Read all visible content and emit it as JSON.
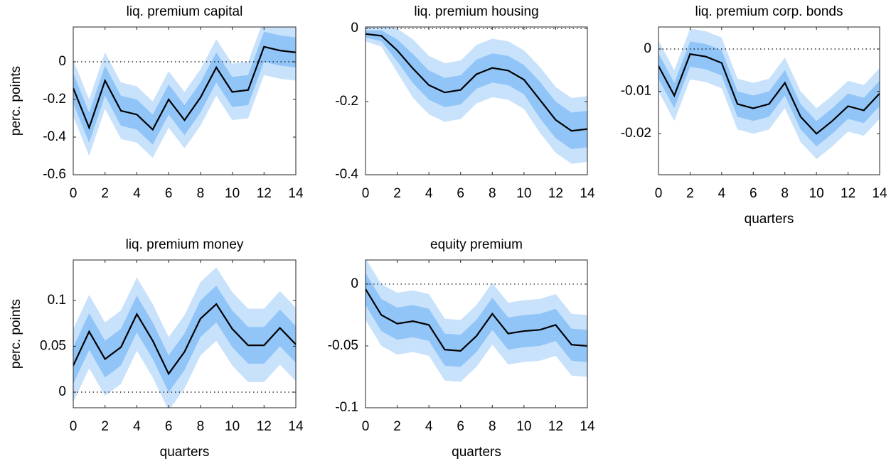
{
  "chart_data": [
    {
      "type": "band-line",
      "title": "liq. premium capital",
      "ylabel": "perc. points",
      "x": [
        0,
        1,
        2,
        3,
        4,
        5,
        6,
        7,
        8,
        9,
        10,
        11,
        12,
        13,
        14
      ],
      "xlim": [
        0,
        14
      ],
      "xticks": [
        0,
        2,
        4,
        6,
        8,
        10,
        12,
        14
      ],
      "ylim": [
        -0.6,
        0.185
      ],
      "yticks": [
        -0.6,
        -0.4,
        -0.2,
        0
      ],
      "reference_line": 0,
      "series": [
        {
          "color": "#000000",
          "values": [
            -0.14,
            -0.35,
            -0.1,
            -0.26,
            -0.28,
            -0.36,
            -0.2,
            -0.31,
            -0.19,
            -0.03,
            -0.16,
            -0.15,
            0.08,
            0.06,
            0.05
          ]
        }
      ],
      "bands": [
        {
          "color": "#c9e2fb",
          "lower": [
            -0.29,
            -0.5,
            -0.25,
            -0.41,
            -0.43,
            -0.51,
            -0.35,
            -0.46,
            -0.34,
            -0.18,
            -0.31,
            -0.3,
            -0.07,
            -0.09,
            -0.1
          ],
          "upper": [
            0.01,
            -0.2,
            0.05,
            -0.11,
            -0.13,
            -0.21,
            -0.05,
            -0.16,
            -0.04,
            0.12,
            -0.01,
            0.0,
            0.23,
            0.21,
            0.2
          ]
        },
        {
          "color": "#91c5f8",
          "lower": [
            -0.22,
            -0.43,
            -0.18,
            -0.34,
            -0.36,
            -0.44,
            -0.28,
            -0.39,
            -0.27,
            -0.11,
            -0.24,
            -0.23,
            0.0,
            -0.02,
            -0.03
          ],
          "upper": [
            -0.06,
            -0.27,
            -0.02,
            -0.18,
            -0.2,
            -0.28,
            -0.12,
            -0.23,
            -0.11,
            0.05,
            -0.08,
            -0.07,
            0.16,
            0.14,
            0.13
          ]
        }
      ]
    },
    {
      "type": "band-line",
      "title": "liq. premium housing",
      "x": [
        0,
        1,
        2,
        3,
        4,
        5,
        6,
        7,
        8,
        9,
        10,
        11,
        12,
        13,
        14
      ],
      "xlim": [
        0,
        14
      ],
      "xticks": [
        0,
        2,
        4,
        6,
        8,
        10,
        12,
        14
      ],
      "ylim": [
        -0.4,
        0.004
      ],
      "yticks": [
        -0.4,
        -0.2,
        0
      ],
      "reference_line": 0,
      "series": [
        {
          "color": "#000000",
          "values": [
            -0.015,
            -0.02,
            -0.06,
            -0.11,
            -0.155,
            -0.175,
            -0.168,
            -0.125,
            -0.108,
            -0.115,
            -0.14,
            -0.195,
            -0.25,
            -0.28,
            -0.275
          ]
        }
      ],
      "bands": [
        {
          "color": "#c9e2fb",
          "lower": [
            -0.035,
            -0.05,
            -0.12,
            -0.19,
            -0.235,
            -0.255,
            -0.248,
            -0.205,
            -0.188,
            -0.195,
            -0.22,
            -0.285,
            -0.34,
            -0.37,
            -0.365
          ],
          "upper": [
            0.005,
            0.01,
            0.0,
            -0.03,
            -0.075,
            -0.095,
            -0.088,
            -0.045,
            -0.028,
            -0.035,
            -0.06,
            -0.105,
            -0.16,
            -0.19,
            -0.185
          ]
        },
        {
          "color": "#91c5f8",
          "lower": [
            -0.025,
            -0.035,
            -0.09,
            -0.15,
            -0.195,
            -0.215,
            -0.208,
            -0.165,
            -0.148,
            -0.155,
            -0.18,
            -0.245,
            -0.3,
            -0.33,
            -0.325
          ],
          "upper": [
            -0.005,
            -0.005,
            -0.03,
            -0.07,
            -0.115,
            -0.135,
            -0.128,
            -0.085,
            -0.068,
            -0.075,
            -0.1,
            -0.145,
            -0.2,
            -0.23,
            -0.225
          ]
        }
      ]
    },
    {
      "type": "band-line",
      "title": "liq. premium corp. bonds",
      "xlabel": "quarters",
      "x": [
        0,
        1,
        2,
        3,
        4,
        5,
        6,
        7,
        8,
        9,
        10,
        11,
        12,
        13,
        14
      ],
      "xlim": [
        0,
        14
      ],
      "xticks": [
        0,
        2,
        4,
        6,
        8,
        10,
        12,
        14
      ],
      "ylim": [
        -0.0297,
        0.0052
      ],
      "yticks": [
        -0.02,
        -0.01,
        0
      ],
      "reference_line": 0,
      "series": [
        {
          "color": "#000000",
          "values": [
            -0.004,
            -0.011,
            -0.0012,
            -0.0018,
            -0.0033,
            -0.013,
            -0.014,
            -0.013,
            -0.008,
            -0.016,
            -0.02,
            -0.017,
            -0.0135,
            -0.0145,
            -0.0105
          ]
        }
      ],
      "bands": [
        {
          "color": "#c9e2fb",
          "lower": [
            -0.01,
            -0.017,
            -0.0072,
            -0.0078,
            -0.0093,
            -0.019,
            -0.02,
            -0.019,
            -0.014,
            -0.022,
            -0.026,
            -0.023,
            -0.0195,
            -0.0205,
            -0.0165
          ],
          "upper": [
            0.002,
            -0.005,
            0.0048,
            0.0042,
            0.0027,
            -0.007,
            -0.008,
            -0.007,
            -0.002,
            -0.01,
            -0.014,
            -0.011,
            -0.0075,
            -0.0085,
            -0.0045
          ]
        },
        {
          "color": "#91c5f8",
          "lower": [
            -0.007,
            -0.014,
            -0.0042,
            -0.0048,
            -0.0063,
            -0.016,
            -0.017,
            -0.016,
            -0.011,
            -0.019,
            -0.023,
            -0.02,
            -0.0165,
            -0.0175,
            -0.0135
          ],
          "upper": [
            -0.001,
            -0.008,
            0.0018,
            0.0012,
            -0.0003,
            -0.01,
            -0.011,
            -0.01,
            -0.005,
            -0.013,
            -0.017,
            -0.014,
            -0.0105,
            -0.0115,
            -0.0075
          ]
        }
      ]
    },
    {
      "type": "band-line",
      "title": "liq. premium money",
      "ylabel": "perc. points",
      "xlabel": "quarters",
      "x": [
        0,
        1,
        2,
        3,
        4,
        5,
        6,
        7,
        8,
        9,
        10,
        11,
        12,
        13,
        14
      ],
      "xlim": [
        0,
        14
      ],
      "xticks": [
        0,
        2,
        4,
        6,
        8,
        10,
        12,
        14
      ],
      "ylim": [
        -0.017,
        0.144
      ],
      "yticks": [
        0,
        0.05,
        0.1
      ],
      "reference_line": 0,
      "series": [
        {
          "color": "#000000",
          "values": [
            0.029,
            0.066,
            0.036,
            0.049,
            0.085,
            0.056,
            0.02,
            0.044,
            0.08,
            0.096,
            0.069,
            0.051,
            0.051,
            0.07,
            0.052
          ]
        }
      ],
      "bands": [
        {
          "color": "#c9e2fb",
          "lower": [
            -0.011,
            0.026,
            -0.004,
            0.009,
            0.045,
            0.016,
            -0.02,
            0.004,
            0.04,
            0.056,
            0.029,
            0.011,
            0.011,
            0.03,
            0.012
          ],
          "upper": [
            0.069,
            0.106,
            0.076,
            0.089,
            0.125,
            0.096,
            0.06,
            0.084,
            0.12,
            0.136,
            0.109,
            0.091,
            0.091,
            0.11,
            0.092
          ]
        },
        {
          "color": "#91c5f8",
          "lower": [
            0.009,
            0.046,
            0.016,
            0.029,
            0.065,
            0.036,
            0.0,
            0.024,
            0.06,
            0.076,
            0.049,
            0.031,
            0.031,
            0.05,
            0.032
          ],
          "upper": [
            0.049,
            0.086,
            0.056,
            0.069,
            0.105,
            0.076,
            0.04,
            0.064,
            0.1,
            0.116,
            0.089,
            0.071,
            0.071,
            0.09,
            0.072
          ]
        }
      ]
    },
    {
      "type": "band-line",
      "title": "equity premium",
      "xlabel": "quarters",
      "x": [
        0,
        1,
        2,
        3,
        4,
        5,
        6,
        7,
        8,
        9,
        10,
        11,
        12,
        13,
        14
      ],
      "xlim": [
        0,
        14
      ],
      "xticks": [
        0,
        2,
        4,
        6,
        8,
        10,
        12,
        14
      ],
      "ylim": [
        -0.1,
        0.0195
      ],
      "yticks": [
        -0.1,
        -0.05,
        0
      ],
      "reference_line": 0,
      "series": [
        {
          "color": "#000000",
          "values": [
            -0.004,
            -0.025,
            -0.032,
            -0.03,
            -0.033,
            -0.053,
            -0.054,
            -0.042,
            -0.024,
            -0.04,
            -0.038,
            -0.037,
            -0.033,
            -0.049,
            -0.05
          ]
        }
      ],
      "bands": [
        {
          "color": "#c9e2fb",
          "lower": [
            -0.029,
            -0.05,
            -0.057,
            -0.055,
            -0.058,
            -0.078,
            -0.079,
            -0.067,
            -0.049,
            -0.065,
            -0.063,
            -0.062,
            -0.058,
            -0.074,
            -0.075
          ],
          "upper": [
            0.021,
            0.0,
            -0.007,
            -0.005,
            -0.008,
            -0.028,
            -0.029,
            -0.017,
            0.001,
            -0.015,
            -0.013,
            -0.012,
            -0.008,
            -0.024,
            -0.025
          ]
        },
        {
          "color": "#91c5f8",
          "lower": [
            -0.017,
            -0.038,
            -0.045,
            -0.043,
            -0.046,
            -0.066,
            -0.067,
            -0.055,
            -0.037,
            -0.053,
            -0.051,
            -0.05,
            -0.046,
            -0.062,
            -0.063
          ],
          "upper": [
            0.009,
            -0.012,
            -0.019,
            -0.017,
            -0.02,
            -0.04,
            -0.041,
            -0.029,
            -0.011,
            -0.027,
            -0.025,
            -0.024,
            -0.02,
            -0.036,
            -0.037
          ]
        }
      ]
    }
  ]
}
